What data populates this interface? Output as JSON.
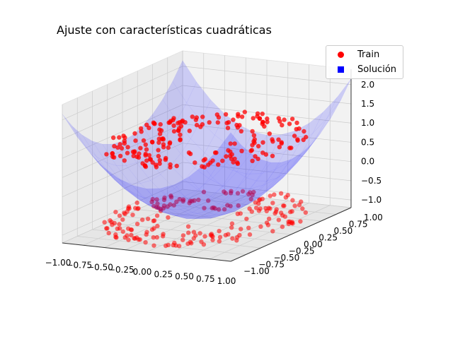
{
  "chart_data": {
    "type": "scatter3d+surface",
    "title": "Ajuste con características cuadráticas",
    "legend": {
      "placement": "top-right",
      "entries": [
        {
          "label": "Train",
          "color": "#ff0000",
          "marker": "circle"
        },
        {
          "label": "Solución",
          "color": "#0000ff",
          "marker": "square"
        }
      ]
    },
    "x_ticks": [
      "−1.00",
      "−0.75",
      "−0.50",
      "−0.25",
      "0.00",
      "0.25",
      "0.50",
      "0.75",
      "1.00"
    ],
    "y_ticks": [
      "−1.00",
      "−0.75",
      "−0.50",
      "−0.25",
      "0.00",
      "0.25",
      "0.50",
      "0.75",
      "1.00"
    ],
    "z_ticks": [
      "−1.0",
      "−0.5",
      "0.0",
      "0.5",
      "1.0",
      "1.5",
      "2.0"
    ],
    "xlim": [
      -1,
      1
    ],
    "ylim": [
      -1,
      1
    ],
    "zlim": [
      -1.2,
      2.4
    ],
    "grid": true,
    "series": [
      {
        "name": "Train",
        "kind": "scatter",
        "color": "#ff0000",
        "description_values": {
          "z_levels": [
            -1,
            1
          ],
          "points_per_level": 200
        }
      },
      {
        "name": "Solución",
        "kind": "surface",
        "color": "#0000ff",
        "surface": {
          "form": "z = a*x^2 + b*y^2 + c",
          "a": 1.7,
          "b": 1.4,
          "c": -0.95
        }
      }
    ]
  }
}
